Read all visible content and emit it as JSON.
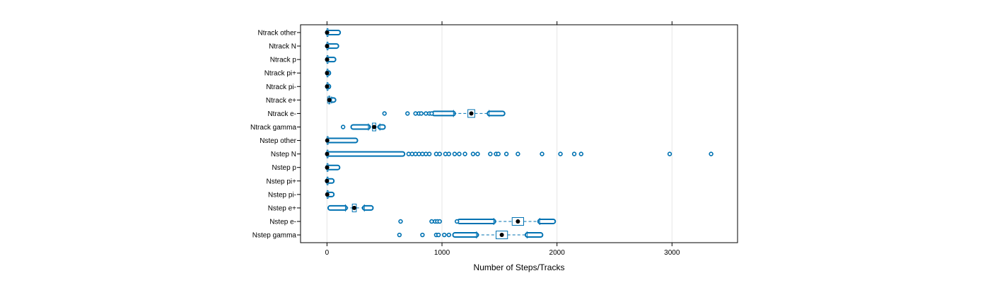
{
  "chart_data": {
    "type": "box",
    "xlabel": "Number of Steps/Tracks",
    "ylabel": "",
    "title": "",
    "xlim": [
      -230,
      3570
    ],
    "x_ticks": [
      0,
      1000,
      2000,
      3000
    ],
    "x_tick_labels": [
      "0",
      "1000",
      "2000",
      "3000"
    ],
    "grid": "vertical",
    "colors": {
      "box": "#0072b2",
      "median": "#000000",
      "frame": "#000000",
      "grid": "#e6e6e6"
    },
    "categories": [
      "Nstep gamma",
      "Nstep e-",
      "Nstep e+",
      "Nstep pi-",
      "Nstep pi+",
      "Nstep p",
      "Nstep N",
      "Nstep other",
      "Ntrack gamma",
      "Ntrack e-",
      "Ntrack e+",
      "Ntrack pi-",
      "Ntrack pi+",
      "Ntrack p",
      "Ntrack N",
      "Ntrack other"
    ],
    "boxes": [
      {
        "name": "Nstep gamma",
        "median": 1520,
        "q1": 1470,
        "q3": 1570,
        "whisker_low": 1300,
        "whisker_high": 1740,
        "outlier_ranges": [
          [
            1110,
            1300
          ],
          [
            1740,
            1860
          ]
        ],
        "outliers": [
          630,
          830,
          950,
          970,
          1020,
          1060
        ]
      },
      {
        "name": "Nstep e-",
        "median": 1660,
        "q1": 1610,
        "q3": 1710,
        "whisker_low": 1450,
        "whisker_high": 1850,
        "outlier_ranges": [
          [
            1150,
            1450
          ],
          [
            1850,
            1970
          ]
        ],
        "outliers": [
          640,
          910,
          940,
          960,
          980,
          1130
        ]
      },
      {
        "name": "Nstep e+",
        "median": 237,
        "q1": 220,
        "q3": 255,
        "whisker_low": 160,
        "whisker_high": 325,
        "outlier_ranges": [
          [
            25,
            160
          ],
          [
            325,
            385
          ]
        ],
        "outliers": []
      },
      {
        "name": "Nstep pi-",
        "median": 2,
        "q1": 1,
        "q3": 4,
        "whisker_low": 0,
        "whisker_high": 8,
        "outlier_ranges": [
          [
            8,
            45
          ]
        ],
        "outliers": []
      },
      {
        "name": "Nstep pi+",
        "median": 0,
        "q1": 0,
        "q3": 1,
        "whisker_low": 0,
        "whisker_high": 3,
        "outlier_ranges": [
          [
            3,
            45
          ]
        ],
        "outliers": []
      },
      {
        "name": "Nstep p",
        "median": 1,
        "q1": 0,
        "q3": 2,
        "whisker_low": 0,
        "whisker_high": 5,
        "outlier_ranges": [
          [
            5,
            95
          ]
        ],
        "outliers": []
      },
      {
        "name": "Nstep N",
        "median": 1,
        "q1": 0,
        "q3": 2,
        "whisker_low": 0,
        "whisker_high": 5,
        "outlier_ranges": [
          [
            5,
            660
          ]
        ],
        "outliers": [
          710,
          740,
          770,
          800,
          830,
          860,
          890,
          950,
          980,
          1030,
          1060,
          1110,
          1150,
          1200,
          1270,
          1310,
          1420,
          1470,
          1490,
          1560,
          1660,
          1870,
          2030,
          2150,
          2210,
          2980,
          3340
        ]
      },
      {
        "name": "Nstep other",
        "median": 2,
        "q1": 1,
        "q3": 4,
        "whisker_low": 0,
        "whisker_high": 8,
        "outlier_ranges": [
          [
            8,
            250
          ]
        ],
        "outliers": []
      },
      {
        "name": "Ntrack gamma",
        "median": 410,
        "q1": 395,
        "q3": 425,
        "whisker_low": 360,
        "whisker_high": 460,
        "outlier_ranges": [
          [
            225,
            360
          ],
          [
            460,
            490
          ]
        ],
        "outliers": [
          140
        ]
      },
      {
        "name": "Ntrack e-",
        "median": 1255,
        "q1": 1225,
        "q3": 1285,
        "whisker_low": 1100,
        "whisker_high": 1410,
        "outlier_ranges": [
          [
            930,
            1100
          ],
          [
            1410,
            1530
          ]
        ],
        "outliers": [
          500,
          700,
          770,
          800,
          820,
          860,
          890,
          910
        ]
      },
      {
        "name": "Ntrack e+",
        "median": 20,
        "q1": 15,
        "q3": 25,
        "whisker_low": 5,
        "whisker_high": 40,
        "outlier_ranges": [
          [
            40,
            60
          ]
        ],
        "outliers": []
      },
      {
        "name": "Ntrack pi-",
        "median": 1,
        "q1": 0,
        "q3": 2,
        "whisker_low": 0,
        "whisker_high": 4,
        "outlier_ranges": [
          [
            4,
            15
          ]
        ],
        "outliers": []
      },
      {
        "name": "Ntrack pi+",
        "median": 1,
        "q1": 0,
        "q3": 2,
        "whisker_low": 0,
        "whisker_high": 4,
        "outlier_ranges": [
          [
            4,
            15
          ]
        ],
        "outliers": []
      },
      {
        "name": "Ntrack p",
        "median": 1,
        "q1": 0,
        "q3": 2,
        "whisker_low": 0,
        "whisker_high": 4,
        "outlier_ranges": [
          [
            4,
            60
          ]
        ],
        "outliers": []
      },
      {
        "name": "Ntrack N",
        "median": 1,
        "q1": 0,
        "q3": 2,
        "whisker_low": 0,
        "whisker_high": 4,
        "outlier_ranges": [
          [
            4,
            85
          ]
        ],
        "outliers": []
      },
      {
        "name": "Ntrack other",
        "median": 1,
        "q1": 0,
        "q3": 2,
        "whisker_low": 0,
        "whisker_high": 4,
        "outlier_ranges": [
          [
            4,
            100
          ]
        ],
        "outliers": []
      }
    ]
  }
}
